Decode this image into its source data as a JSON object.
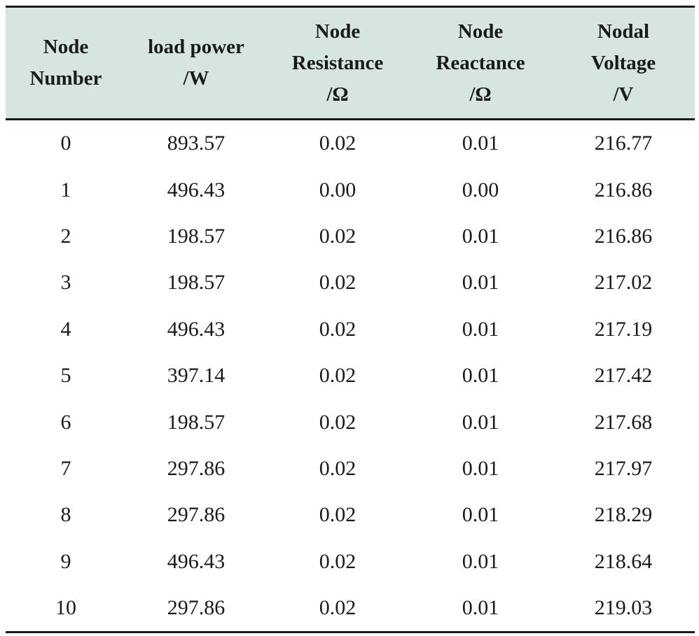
{
  "table": {
    "headers": [
      {
        "lines": [
          "Node",
          "Number"
        ]
      },
      {
        "lines": [
          "load power",
          "/W"
        ]
      },
      {
        "lines": [
          "Node",
          "Resistance",
          "/Ω"
        ]
      },
      {
        "lines": [
          "Node",
          "Reactance",
          "/Ω"
        ]
      },
      {
        "lines": [
          "Nodal",
          "Voltage",
          "/V"
        ]
      }
    ],
    "rows": [
      [
        "0",
        "893.57",
        "0.02",
        "0.01",
        "216.77"
      ],
      [
        "1",
        "496.43",
        "0.00",
        "0.00",
        "216.86"
      ],
      [
        "2",
        "198.57",
        "0.02",
        "0.01",
        "216.86"
      ],
      [
        "3",
        "198.57",
        "0.02",
        "0.01",
        "217.02"
      ],
      [
        "4",
        "496.43",
        "0.02",
        "0.01",
        "217.19"
      ],
      [
        "5",
        "397.14",
        "0.02",
        "0.01",
        "217.42"
      ],
      [
        "6",
        "198.57",
        "0.02",
        "0.01",
        "217.68"
      ],
      [
        "7",
        "297.86",
        "0.02",
        "0.01",
        "217.97"
      ],
      [
        "8",
        "297.86",
        "0.02",
        "0.01",
        "218.29"
      ],
      [
        "9",
        "496.43",
        "0.02",
        "0.01",
        "218.64"
      ],
      [
        "10",
        "297.86",
        "0.02",
        "0.01",
        "219.03"
      ]
    ]
  },
  "colors": {
    "header_background": "#d6e5e0",
    "rule": "#1a1a1a",
    "text": "#1a1a1a"
  }
}
